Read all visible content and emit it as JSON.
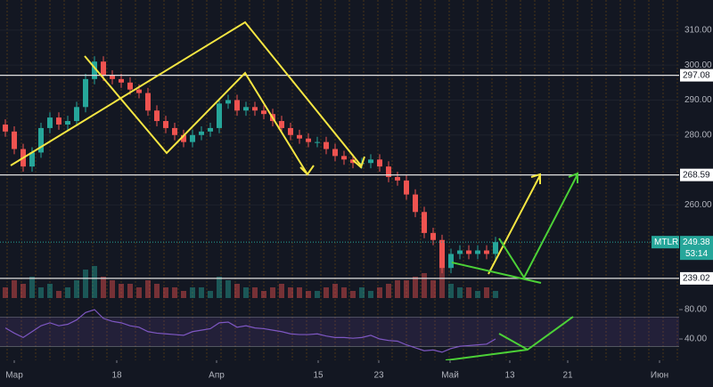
{
  "chart_data": {
    "type": "candlestick",
    "symbol": "MTLR",
    "countdown": "53:14",
    "xlim": [
      -0.6,
      75.6
    ],
    "xticks": [
      {
        "value": 1.0,
        "label": "Мар"
      },
      {
        "value": 12.5,
        "label": "18"
      },
      {
        "value": 23.7,
        "label": "Апр"
      },
      {
        "value": 35.1,
        "label": "15"
      },
      {
        "value": 41.9,
        "label": "23"
      },
      {
        "value": 49.9,
        "label": "Май"
      },
      {
        "value": 56.6,
        "label": "13"
      },
      {
        "value": 63.1,
        "label": "21"
      },
      {
        "value": 73.4,
        "label": "Июн"
      }
    ],
    "ylim": [
      233.4,
      318.6
    ],
    "yticks": [
      {
        "value": 310,
        "label": "310.00"
      },
      {
        "value": 300,
        "label": "300.00"
      },
      {
        "value": 290,
        "label": "290.00"
      },
      {
        "value": 280,
        "label": "280.00"
      },
      {
        "value": 260,
        "label": "260.00"
      }
    ],
    "levels": [
      297.08,
      268.59,
      239.02
    ],
    "open": [
      283,
      281,
      276,
      271,
      275,
      282,
      285,
      283,
      284,
      288,
      296,
      301,
      297,
      296,
      295,
      293,
      292,
      287,
      284,
      282,
      280,
      278,
      280,
      281,
      282,
      289,
      290,
      287,
      288,
      287,
      286,
      284,
      282,
      280,
      279,
      278,
      278,
      276,
      274,
      273,
      272,
      272,
      273,
      271,
      268,
      267,
      263,
      258,
      252,
      250,
      242,
      246,
      247,
      246,
      247,
      246
    ],
    "high": [
      284.5,
      282.5,
      277.5,
      276.5,
      283.5,
      286.5,
      286.5,
      285.5,
      289.5,
      297.5,
      302.5,
      302.5,
      298.5,
      297.5,
      296.5,
      294.5,
      293.5,
      288.5,
      285.5,
      283.5,
      281.5,
      281.5,
      282.5,
      283.5,
      290.5,
      291.5,
      291.5,
      289.5,
      289.5,
      288.5,
      287.5,
      285.5,
      283.5,
      281.5,
      280.5,
      279.5,
      279.5,
      277.5,
      275.5,
      274.5,
      273.5,
      274.5,
      274.5,
      272.5,
      269.5,
      268.5,
      264.5,
      259.5,
      253.5,
      251.5,
      247.5,
      248.5,
      248.5,
      248.5,
      248.5,
      250.9
    ],
    "low": [
      279.5,
      274.5,
      269.5,
      269.5,
      273.5,
      280.5,
      281.5,
      281.5,
      282.5,
      286.5,
      294.5,
      295.5,
      294.5,
      293.5,
      291.5,
      290.5,
      285.5,
      282.5,
      280.5,
      278.5,
      276.5,
      276.5,
      278.5,
      279.5,
      280.5,
      287.5,
      285.5,
      285.5,
      285.5,
      284.5,
      282.5,
      280.5,
      278.5,
      277.5,
      276.5,
      276.5,
      274.5,
      272.5,
      271.5,
      270.5,
      270.5,
      270.5,
      269.5,
      266.5,
      265.5,
      261.5,
      256.5,
      250.5,
      248.5,
      240.5,
      240.5,
      244.5,
      244.5,
      244.5,
      244.5,
      244.5
    ],
    "close": [
      281,
      276,
      271,
      275,
      282,
      285,
      283,
      284,
      288,
      296,
      301,
      297,
      296,
      295,
      293,
      292,
      287,
      284,
      282,
      280,
      278,
      280,
      281,
      282,
      289,
      290,
      287,
      288,
      287,
      286,
      284,
      282,
      280,
      279,
      278,
      278,
      276,
      274,
      273,
      272,
      272,
      273,
      271,
      268,
      267,
      263,
      258,
      252,
      250,
      242,
      246,
      247,
      246,
      247,
      246,
      249.38
    ],
    "volume": [
      3,
      5,
      4,
      6,
      3,
      4,
      2,
      3,
      5,
      8,
      9,
      6,
      5,
      4,
      4,
      3,
      5,
      4,
      3,
      3,
      2,
      3,
      3,
      2,
      6,
      5,
      4,
      3,
      3,
      2,
      3,
      4,
      3,
      3,
      2,
      2,
      3,
      4,
      3,
      2,
      3,
      2,
      3,
      4,
      5,
      5,
      6,
      7,
      5,
      9,
      4,
      3,
      3,
      2,
      3,
      2
    ],
    "rsi": [
      55,
      48,
      42,
      50,
      58,
      62,
      58,
      60,
      66,
      76,
      80,
      68,
      64,
      62,
      58,
      56,
      50,
      48,
      47,
      46,
      45,
      50,
      52,
      54,
      62,
      63,
      56,
      58,
      55,
      54,
      52,
      50,
      47,
      46,
      46,
      47,
      44,
      42,
      42,
      41,
      42,
      45,
      40,
      38,
      37,
      32,
      28,
      24,
      25,
      22,
      27,
      30,
      31,
      32,
      33,
      40
    ],
    "rsi_lim": [
      17,
      89.7
    ],
    "rsi_band": [
      30,
      70
    ],
    "rsi_ticks": [
      {
        "value": 80,
        "label": "80.00"
      },
      {
        "value": 40,
        "label": "40.00"
      }
    ],
    "up_color": "#26a69a",
    "down_color": "#ef5350",
    "rsi_color": "#7e57c2"
  }
}
